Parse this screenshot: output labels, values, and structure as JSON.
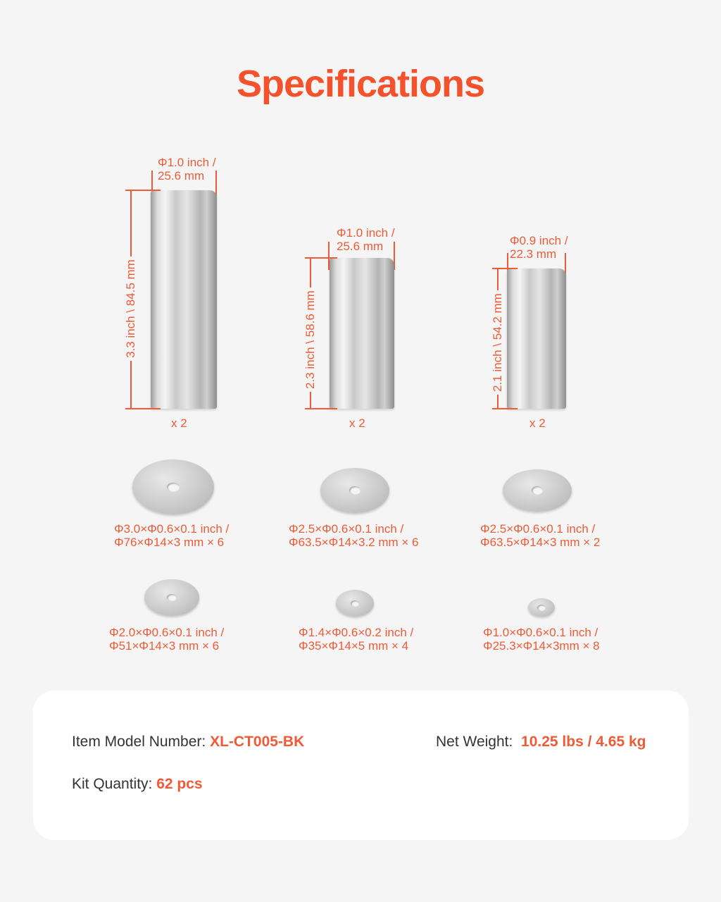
{
  "title": "Specifications",
  "accent_color": "#f05a36",
  "tubes": [
    {
      "diameter": [
        "Φ1.0 inch /",
        "25.6 mm"
      ],
      "length": "3.3 inch \\ 84.5 mm",
      "qty": "x 2"
    },
    {
      "diameter": [
        "Φ1.0 inch /",
        "25.6 mm"
      ],
      "length": "2.3 inch \\ 58.6 mm",
      "qty": "x 2"
    },
    {
      "diameter": [
        "Φ0.9 inch /",
        "22.3 mm"
      ],
      "length": "2.1 inch \\ 54.2 mm",
      "qty": "x 2"
    }
  ],
  "washers": [
    {
      "line1": "Φ3.0×Φ0.6×0.1 inch /",
      "line2": "Φ76×Φ14×3 mm × 6"
    },
    {
      "line1": "Φ2.5×Φ0.6×0.1 inch /",
      "line2": "Φ63.5×Φ14×3.2 mm × 6"
    },
    {
      "line1": "Φ2.5×Φ0.6×0.1 inch /",
      "line2": "Φ63.5×Φ14×3 mm × 2"
    },
    {
      "line1": "Φ2.0×Φ0.6×0.1 inch /",
      "line2": "Φ51×Φ14×3 mm × 6"
    },
    {
      "line1": "Φ1.4×Φ0.6×0.2 inch /",
      "line2": "Φ35×Φ14×5 mm × 4"
    },
    {
      "line1": "Φ1.0×Φ0.6×0.1 inch /",
      "line2": "Φ25.3×Φ14×3mm × 8"
    }
  ],
  "info": {
    "model_label": "Item Model Number: ",
    "model_value": "XL-CT005-BK",
    "weight_label": "Net Weight: ",
    "weight_value": "10.25 lbs / 4.65 kg",
    "kit_label": "Kit Quantity: ",
    "kit_value": "62 pcs"
  }
}
